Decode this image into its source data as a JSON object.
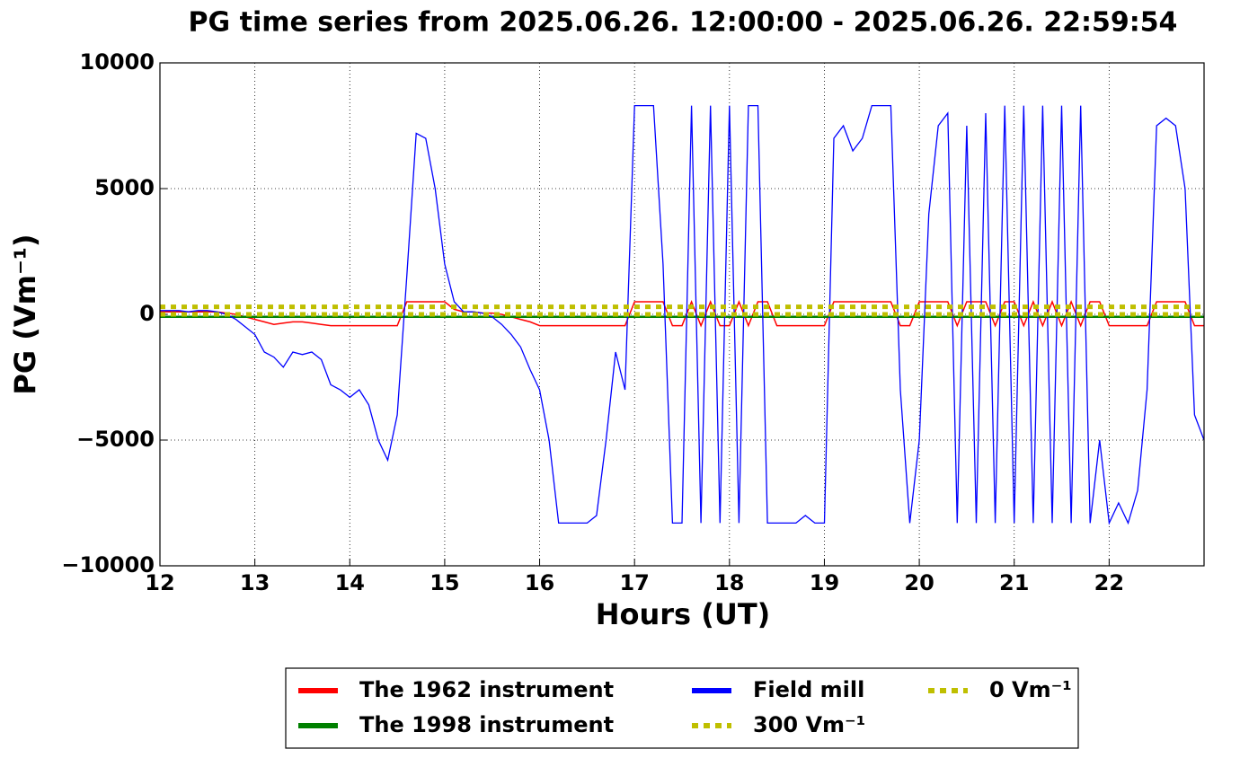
{
  "chart_data": {
    "type": "line",
    "title": "PG time series from 2025.06.26. 12:00:00 - 2025.06.26. 22:59:54",
    "xlabel": "Hours (UT)",
    "ylabel": "PG (Vm⁻¹)",
    "xlim": [
      12,
      23
    ],
    "ylim": [
      -10000,
      10000
    ],
    "xticks": [
      12,
      13,
      14,
      15,
      16,
      17,
      18,
      19,
      20,
      21,
      22
    ],
    "yticks": [
      {
        "value": -10000,
        "label": "−10000"
      },
      {
        "value": -5000,
        "label": "−5000"
      },
      0,
      5000,
      10000
    ],
    "grid": true,
    "legend": "lower center",
    "x": [
      12.0,
      12.1,
      12.2,
      12.3,
      12.4,
      12.5,
      12.6,
      12.7,
      12.8,
      12.9,
      13.0,
      13.1,
      13.2,
      13.3,
      13.4,
      13.5,
      13.6,
      13.7,
      13.8,
      13.9,
      14.0,
      14.1,
      14.2,
      14.3,
      14.4,
      14.5,
      14.6,
      14.7,
      14.8,
      14.9,
      15.0,
      15.1,
      15.2,
      15.3,
      15.4,
      15.5,
      15.6,
      15.7,
      15.8,
      15.9,
      16.0,
      16.1,
      16.2,
      16.3,
      16.4,
      16.5,
      16.6,
      16.7,
      16.8,
      16.9,
      17.0,
      17.1,
      17.2,
      17.3,
      17.4,
      17.5,
      17.6,
      17.7,
      17.8,
      17.9,
      18.0,
      18.1,
      18.2,
      18.3,
      18.4,
      18.5,
      18.6,
      18.7,
      18.8,
      18.9,
      19.0,
      19.1,
      19.2,
      19.3,
      19.4,
      19.5,
      19.6,
      19.7,
      19.8,
      19.9,
      20.0,
      20.1,
      20.2,
      20.3,
      20.4,
      20.5,
      20.6,
      20.7,
      20.8,
      20.9,
      21.0,
      21.1,
      21.2,
      21.3,
      21.4,
      21.5,
      21.6,
      21.7,
      21.8,
      21.9,
      22.0,
      22.1,
      22.2,
      22.3,
      22.4,
      22.5,
      22.6,
      22.7,
      22.8,
      22.9,
      23.0
    ],
    "series": [
      {
        "name": "The 1962 instrument",
        "color": "#ff0000",
        "width": 1.5,
        "values": [
          100,
          100,
          100,
          100,
          100,
          100,
          100,
          50,
          0,
          -100,
          -200,
          -300,
          -400,
          -350,
          -300,
          -300,
          -350,
          -400,
          -450,
          -450,
          -450,
          -450,
          -450,
          -450,
          -450,
          -450,
          500,
          500,
          500,
          500,
          500,
          200,
          100,
          100,
          50,
          50,
          0,
          -100,
          -200,
          -300,
          -450,
          -450,
          -450,
          -450,
          -450,
          -450,
          -450,
          -450,
          -450,
          -450,
          500,
          500,
          500,
          500,
          -450,
          -450,
          500,
          -450,
          500,
          -450,
          -450,
          500,
          -450,
          500,
          500,
          -450,
          -450,
          -450,
          -450,
          -450,
          -450,
          500,
          500,
          500,
          500,
          500,
          500,
          500,
          -450,
          -450,
          500,
          500,
          500,
          500,
          -450,
          500,
          500,
          500,
          -450,
          500,
          500,
          -450,
          500,
          -450,
          500,
          -450,
          500,
          -450,
          500,
          500,
          -450,
          -450,
          -450,
          -450,
          -450,
          500,
          500,
          500,
          500,
          -450,
          -450
        ]
      },
      {
        "name": "The 1998 instrument",
        "color": "#008000",
        "width": 2.5,
        "x": [
          12,
          23
        ],
        "values": [
          -100,
          -100
        ]
      },
      {
        "name": "Field mill",
        "color": "#0000ff",
        "width": 1.3,
        "values": [
          150,
          150,
          150,
          100,
          150,
          150,
          100,
          0,
          -200,
          -500,
          -800,
          -1500,
          -1700,
          -2100,
          -1500,
          -1600,
          -1500,
          -1800,
          -2800,
          -3000,
          -3300,
          -3000,
          -3600,
          -5000,
          -5800,
          -4000,
          1500,
          7200,
          7000,
          5000,
          2000,
          500,
          100,
          100,
          50,
          -100,
          -400,
          -800,
          -1300,
          -2200,
          -3000,
          -5000,
          -8300,
          -8300,
          -8300,
          -8300,
          -8000,
          -5000,
          -1500,
          -3000,
          8300,
          8300,
          8300,
          2000,
          -8300,
          -8300,
          8300,
          -8300,
          8300,
          -8300,
          8300,
          -8300,
          8300,
          8300,
          -8300,
          -8300,
          -8300,
          -8300,
          -8000,
          -8300,
          -8300,
          7000,
          7500,
          6500,
          7000,
          8300,
          8300,
          8300,
          -3000,
          -8300,
          -5000,
          4000,
          7500,
          8000,
          -8300,
          7500,
          -8300,
          8000,
          -8300,
          8300,
          -8300,
          8300,
          -8300,
          8300,
          -8300,
          8300,
          -8300,
          8300,
          -8300,
          -5000,
          -8300,
          -7500,
          -8300,
          -7000,
          -3000,
          7500,
          7800,
          7500,
          5000,
          -4000,
          -5000
        ]
      },
      {
        "name": "300 Vm⁻¹",
        "color": "#bfbf00",
        "width": 5,
        "dashed": true,
        "x": [
          12,
          23
        ],
        "values": [
          300,
          300
        ]
      },
      {
        "name": "0 Vm⁻¹",
        "color": "#bfbf00",
        "width": 5,
        "dashed": true,
        "x": [
          12,
          23
        ],
        "values": [
          0,
          0
        ]
      }
    ]
  }
}
